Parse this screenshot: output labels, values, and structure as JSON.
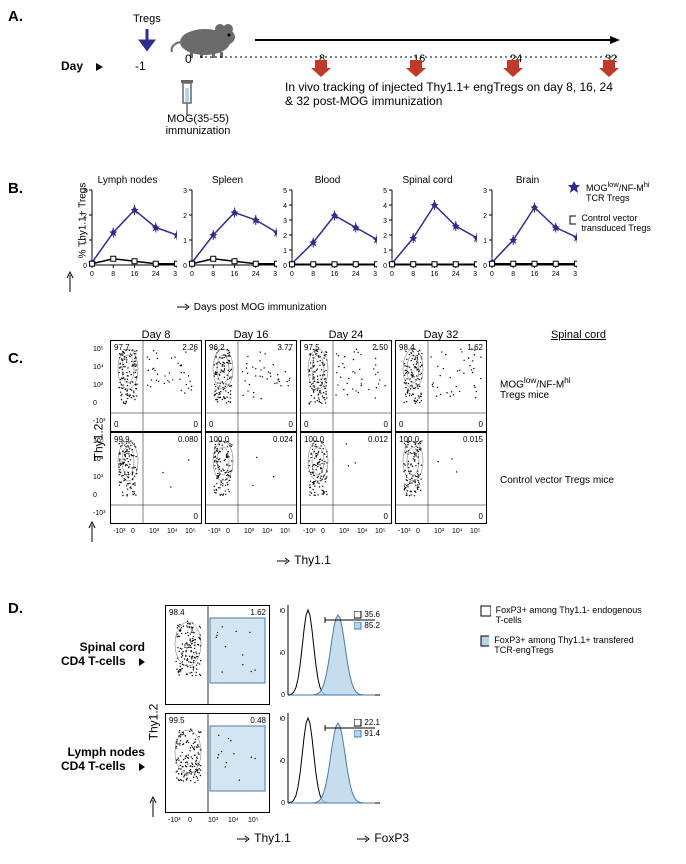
{
  "panelA": {
    "label": "A.",
    "tregs": "Tregs",
    "day": "Day",
    "dayMinus1": "-1",
    "day0": "0",
    "days": [
      "8",
      "16",
      "24",
      "32"
    ],
    "mog": "MOG(35-55)\nimmunization",
    "tracking": "In vivo tracking of injected Thy1.1+ engTregs on day 8, 16, 24 & 32 post-MOG immunization"
  },
  "panelB": {
    "label": "B.",
    "yLabel": "% Thy1.1+ Tregs",
    "xLabel": "Days post MOG immunization",
    "tissues": [
      "Lymph nodes",
      "Spleen",
      "Blood",
      "Spinal cord",
      "Brain"
    ],
    "xTicks": [
      0,
      8,
      16,
      24,
      32
    ],
    "yMax": [
      3,
      3,
      5,
      5,
      3
    ],
    "series1": {
      "name": "MOGlow/NF-Mhi TCR Tregs",
      "color": "#2e2d8b",
      "data": [
        [
          0.1,
          1.3,
          2.2,
          1.5,
          1.2
        ],
        [
          0.1,
          1.2,
          2.1,
          1.8,
          1.3
        ],
        [
          0.1,
          1.5,
          3.3,
          2.5,
          1.7
        ],
        [
          0.1,
          1.8,
          4.0,
          2.6,
          1.8
        ],
        [
          0.1,
          1.0,
          2.3,
          1.5,
          1.1
        ]
      ]
    },
    "series2": {
      "name": "Control vector transduced Tregs",
      "color": "#000000",
      "data": [
        [
          0.05,
          0.25,
          0.15,
          0.05,
          0.05
        ],
        [
          0.05,
          0.25,
          0.15,
          0.05,
          0.05
        ],
        [
          0.05,
          0.05,
          0.05,
          0.05,
          0.05
        ],
        [
          0.05,
          0.05,
          0.05,
          0.05,
          0.05
        ],
        [
          0.05,
          0.05,
          0.05,
          0.05,
          0.05
        ]
      ]
    }
  },
  "panelC": {
    "label": "C.",
    "days": [
      "Day 8",
      "Day 16",
      "Day 24",
      "Day 32"
    ],
    "spinal": "Spinal cord",
    "yLabel": "Thy1.2",
    "xLabel": "Thy1.1",
    "row1Label": "MOGlow/NF-Mhi Tregs mice",
    "row2Label": "Control vector Tregs mice",
    "row1Quads": [
      [
        "97.7",
        "2.26",
        "0",
        "0"
      ],
      [
        "96.2",
        "3.77",
        "0",
        "0"
      ],
      [
        "97.5",
        "2.50",
        "0",
        "0"
      ],
      [
        "98.4",
        "1.62",
        "0",
        "0"
      ]
    ],
    "row2Quads": [
      [
        "99.9",
        "0.080",
        "",
        "0"
      ],
      [
        "100.0",
        "0.024",
        "",
        "0"
      ],
      [
        "100.0",
        "0.012",
        "",
        "0"
      ],
      [
        "100.0",
        "0.015",
        "",
        "0"
      ]
    ],
    "xTicks": [
      "-10³",
      "0",
      "10³",
      "10⁴",
      "10⁵"
    ]
  },
  "panelD": {
    "label": "D.",
    "rows": [
      "Spinal cord CD4 T-cells",
      "Lymph nodes CD4 T-cells"
    ],
    "yLabel": "Thy1.2",
    "xLabel1": "Thy1.1",
    "xLabel2": "FoxP3",
    "flowQuads": [
      [
        "98.4",
        "1.62"
      ],
      [
        "99.5",
        "0.48"
      ]
    ],
    "histVals": [
      [
        "35.6",
        "85.2"
      ],
      [
        "22.1",
        "91.4"
      ]
    ],
    "legend1": "FoxP3+ among Thy1.1- endogenous T-cells",
    "legend2": "FoxP3+ among Thy1.1+ transfered TCR-engTregs",
    "fillColor": "#b8d4ea"
  }
}
